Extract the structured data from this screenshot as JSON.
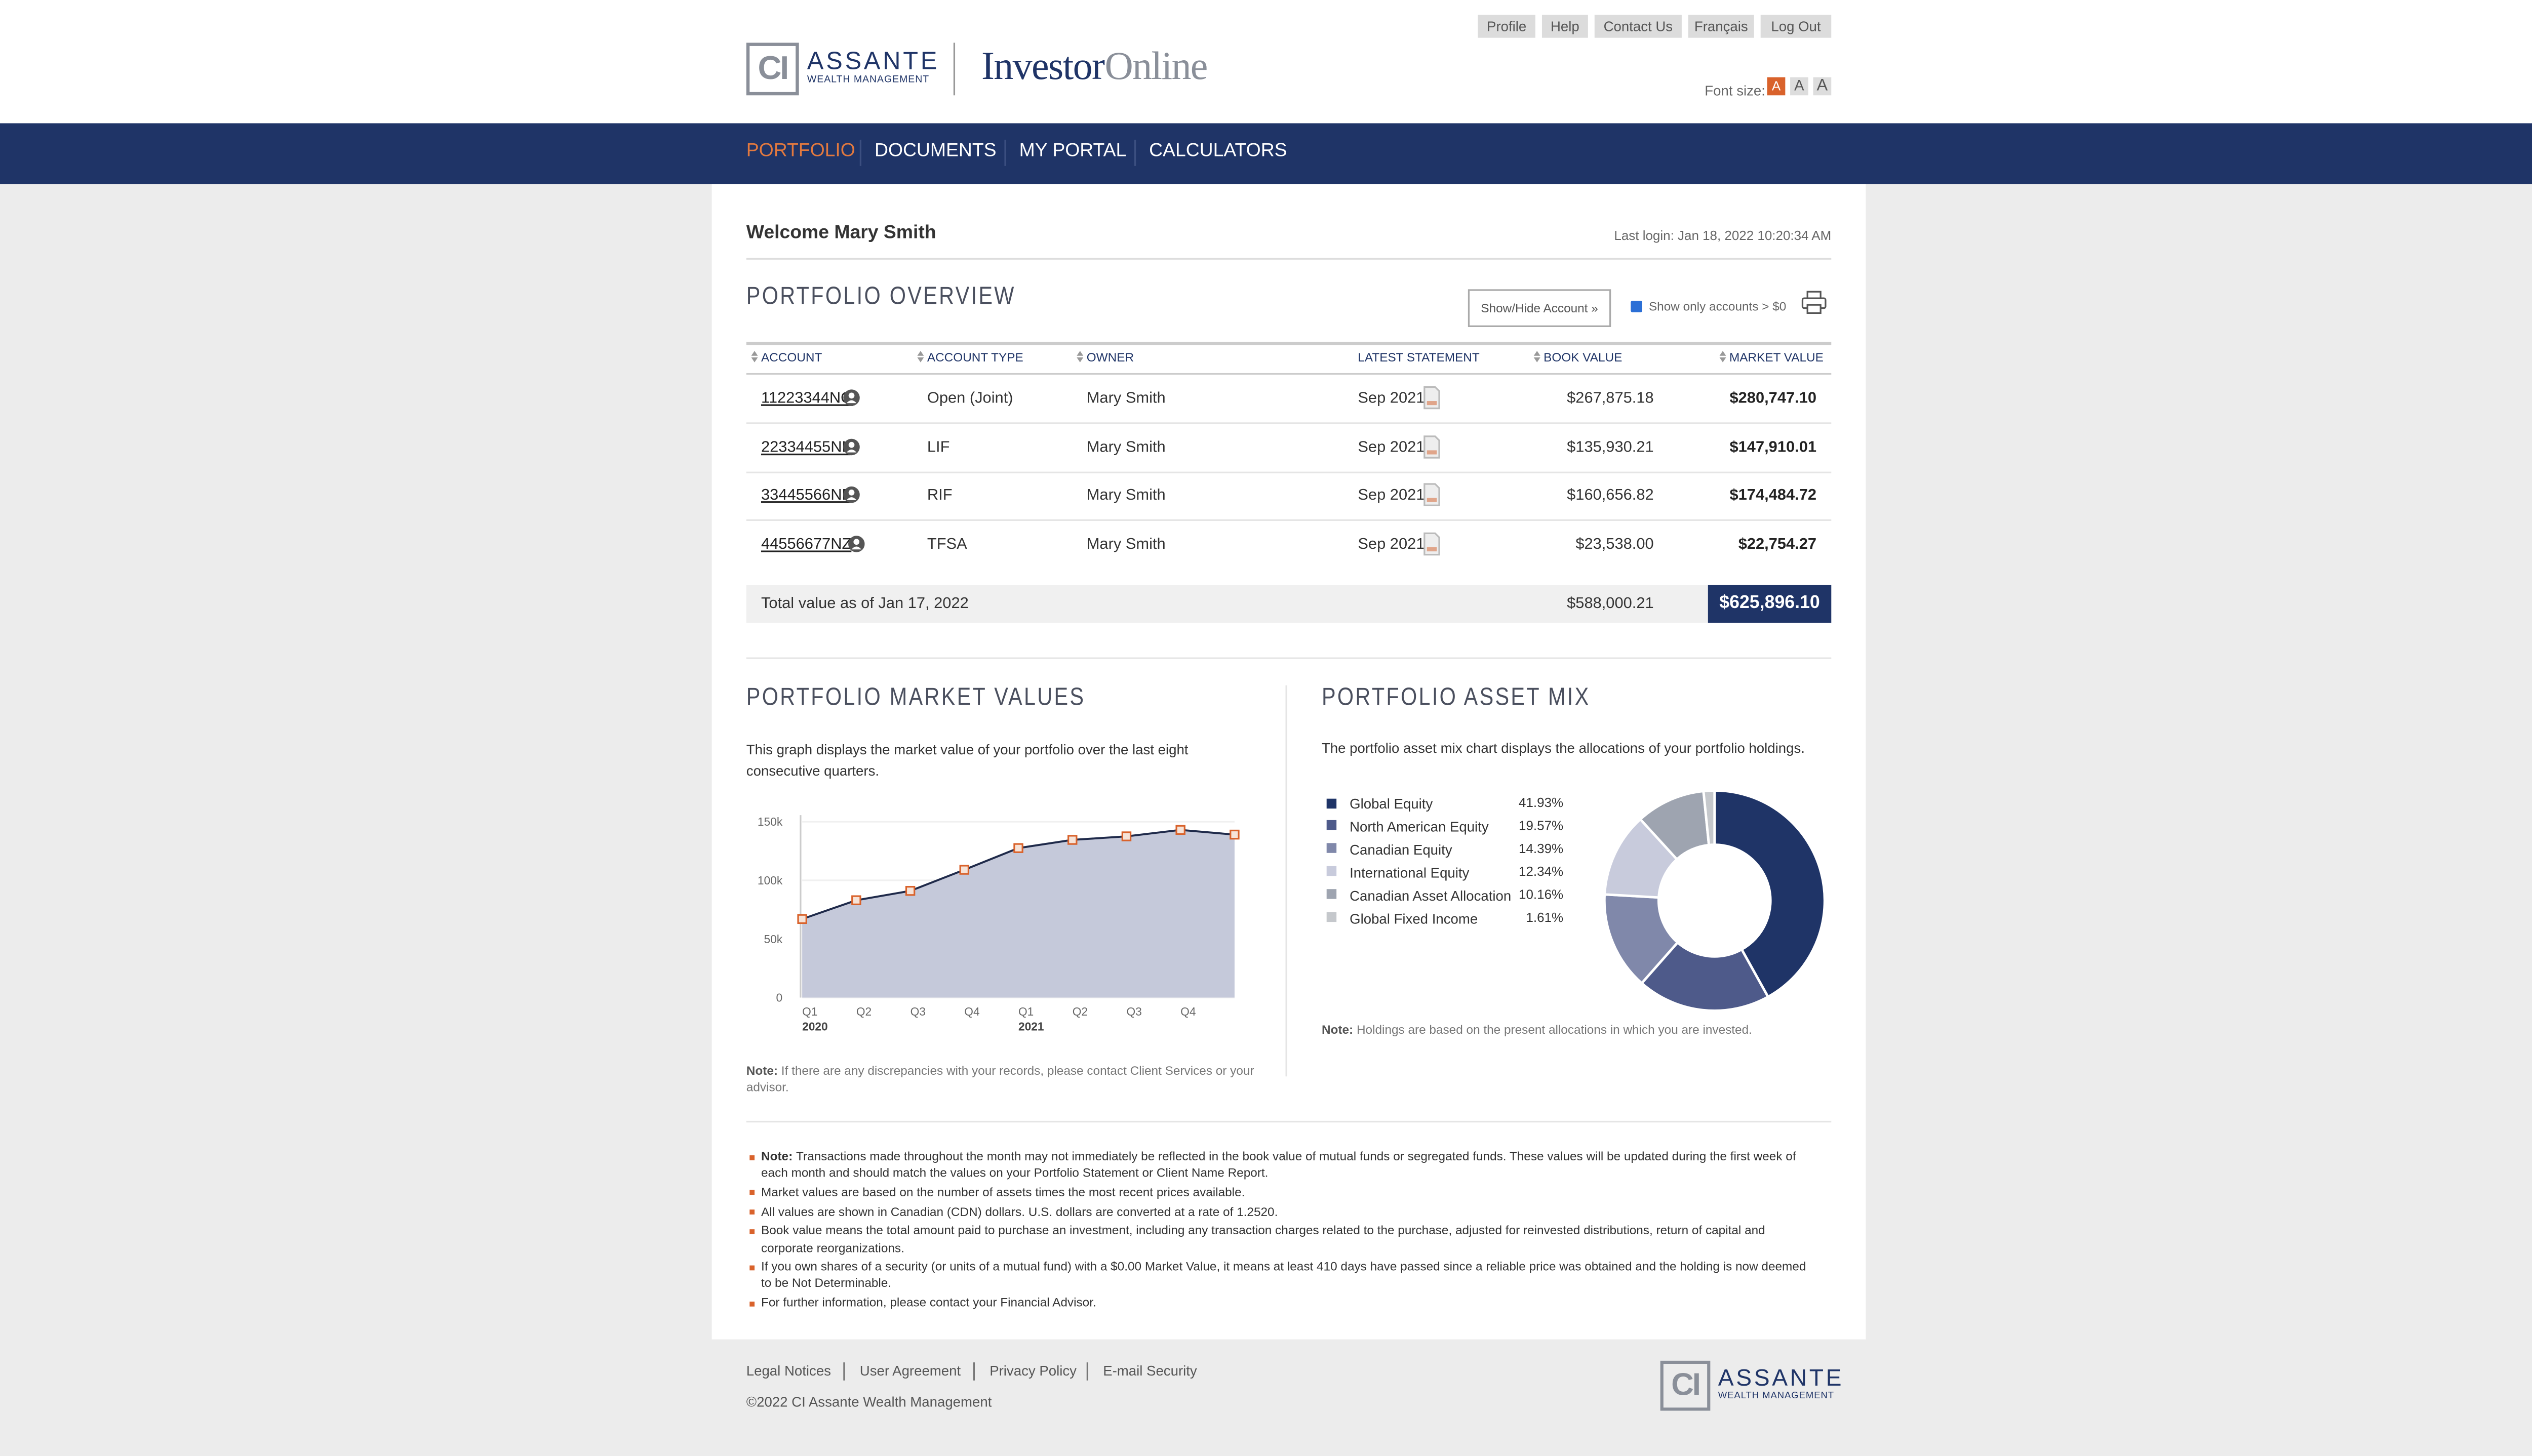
{
  "header": {
    "links": [
      "Profile",
      "Help",
      "Contact Us",
      "Français",
      "Log Out"
    ],
    "logo": {
      "mark": "CI",
      "name": "ASSANTE",
      "sub": "WEALTH MANAGEMENT"
    },
    "product": {
      "first": "Investor",
      "second": "Online"
    },
    "font_size_label": "Font size:",
    "font_sizes": [
      "A",
      "A",
      "A"
    ]
  },
  "nav": [
    "PORTFOLIO",
    "DOCUMENTS",
    "MY PORTAL",
    "CALCULATORS"
  ],
  "welcome": "Welcome Mary Smith",
  "last_login": "Last login: Jan 18, 2022 10:20:34 AM",
  "overview": {
    "title": "PORTFOLIO OVERVIEW",
    "show_hide": "Show/Hide Account »",
    "checkbox_label": "Show only accounts > $0",
    "table": {
      "columns": [
        "ACCOUNT",
        "ACCOUNT TYPE",
        "OWNER",
        "LATEST STATEMENT",
        "BOOK VALUE",
        "MARKET VALUE"
      ],
      "rows": [
        [
          "11223344NO",
          "Open (Joint)",
          "Mary Smith",
          "Sep 2021",
          "$267,875.18",
          "$280,747.10"
        ],
        [
          "22334455NL",
          "LIF",
          "Mary Smith",
          "Sep 2021",
          "$135,930.21",
          "$147,910.01"
        ],
        [
          "33445566NF",
          "RIF",
          "Mary Smith",
          "Sep 2021",
          "$160,656.82",
          "$174,484.72"
        ],
        [
          "44556677NZ",
          "TFSA",
          "Mary Smith",
          "Sep 2021",
          "$23,538.00",
          "$22,754.27"
        ]
      ],
      "total": {
        "label": "Total value as of Jan 17, 2022",
        "book": "$588,000.21",
        "market": "$625,896.10"
      }
    }
  },
  "market_values": {
    "title": "PORTFOLIO MARKET VALUES",
    "description": "This graph displays the market value of your portfolio over the last eight consecutive quarters.",
    "note_label": "Note:",
    "note": "If there are any discrepancies with your records, please contact Client Services or your advisor."
  },
  "asset_mix": {
    "title": "PORTFOLIO ASSET MIX",
    "description": "The portfolio asset mix chart displays the allocations of your portfolio holdings.",
    "note_label": "Note:",
    "note": "Holdings are based on the present allocations in which you are invested."
  },
  "chart_data": [
    {
      "type": "area",
      "categories": [
        "Q1",
        "Q2",
        "Q3",
        "Q4",
        "Q1",
        "Q2",
        "Q3",
        "Q4",
        null
      ],
      "year_labels": [
        "2020",
        "2021"
      ],
      "values": [
        67000,
        83000,
        91000,
        109000,
        127500,
        134500,
        137500,
        143000,
        139000
      ],
      "color": "#1f2a4a",
      "fill": "#c5c9da",
      "marker_color": "#d9622b",
      "ylim": [
        0,
        150000
      ],
      "yticks": [
        0,
        {
          "value": 50000,
          "label": "50k"
        },
        {
          "value": 100000,
          "label": "100k"
        },
        {
          "value": 150000,
          "label": "150k"
        }
      ]
    },
    {
      "type": "donut",
      "categories": [
        "Global Equity",
        "North American Equity",
        "Canadian Equity",
        "International Equity",
        "Canadian Asset Allocation",
        "Global Fixed Income"
      ],
      "values": [
        41.93,
        19.57,
        14.39,
        12.34,
        10.16,
        1.61
      ],
      "value_labels": [
        "41.93%",
        "19.57%",
        "14.39%",
        "12.34%",
        "10.16%",
        "1.61%"
      ],
      "colors": [
        "#1f3467",
        "#4e5a8a",
        "#8088aa",
        "#c8cbdc",
        "#9ea4b0",
        "#c5c8cc"
      ]
    }
  ],
  "notes_label": "Note:",
  "notes": [
    "Transactions made throughout the month may not immediately be reflected in the book value of mutual funds or segregated funds. These values will be updated during the first week of each month and should match the values on your Portfolio Statement or Client Name Report.",
    "Market values are based on the number of assets times the most recent prices available.",
    "All values are shown in Canadian (CDN) dollars. U.S. dollars are converted at a rate of 1.2520.",
    "Book value means the total amount paid to purchase an investment, including any transaction charges related to the purchase, adjusted for reinvested distributions, return of capital and corporate reorganizations.",
    "If you own shares of a security (or units of a mutual fund) with a $0.00 Market Value, it means at least 410 days have passed since a reliable price was obtained and the holding is now deemed to be Not Determinable.",
    "For further information, please contact your Financial Advisor."
  ],
  "footer": {
    "links": [
      "Legal Notices",
      "User Agreement",
      "Privacy Policy",
      "E-mail Security"
    ],
    "copyright": "©2022 CI Assante Wealth Management",
    "logo": {
      "mark": "CI",
      "name": "ASSANTE",
      "sub": "WEALTH MANAGEMENT"
    }
  }
}
